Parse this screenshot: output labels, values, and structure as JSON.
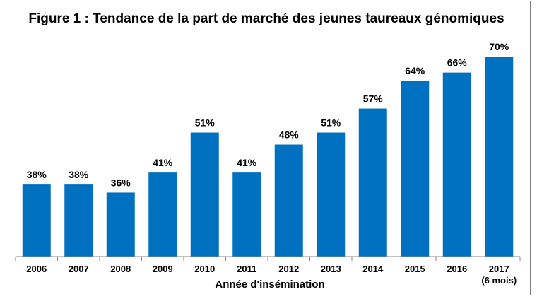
{
  "chart_data": {
    "type": "bar",
    "title": "Figure 1 : Tendance de la part de marché des jeunes taureaux génomiques",
    "xlabel": "Année d'insémination",
    "ylabel": "",
    "categories": [
      "2006",
      "2007",
      "2008",
      "2009",
      "2010",
      "2011",
      "2012",
      "2013",
      "2014",
      "2015",
      "2016",
      "2017"
    ],
    "category_sublabels": [
      "",
      "",
      "",
      "",
      "",
      "",
      "",
      "",
      "",
      "",
      "",
      "(6 mois)"
    ],
    "values": [
      38,
      38,
      36,
      41,
      51,
      41,
      48,
      51,
      57,
      64,
      66,
      70
    ],
    "data_labels": [
      "38%",
      "38%",
      "36%",
      "41%",
      "51%",
      "41%",
      "48%",
      "51%",
      "57%",
      "64%",
      "66%",
      "70%"
    ],
    "ylim": [
      20,
      70
    ],
    "grid": false,
    "legend": "none",
    "bar_color": "#0070C0"
  }
}
